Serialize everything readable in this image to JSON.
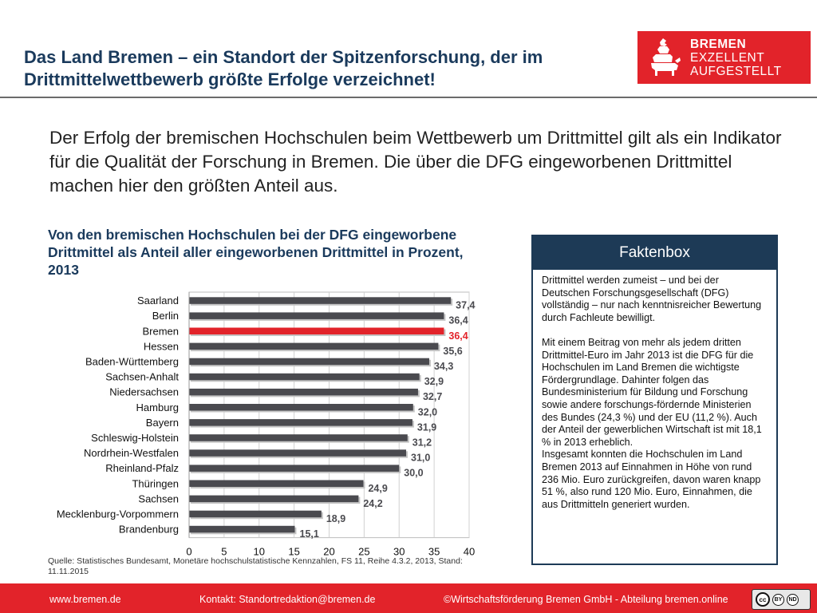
{
  "header": {
    "title": "Das Land Bremen – ein Standort der Spitzenforschung, der im Drittmittelwettbewerb größte Erfolge verzeichnet!"
  },
  "logo": {
    "line1": "BREMEN",
    "line2": "EXZELLENT",
    "line3": "AUFGESTELLT",
    "color": "#e2232a"
  },
  "intro": {
    "text": "Der Erfolg der bremischen Hochschulen beim Wettbewerb um Drittmittel gilt als ein Indikator für die Qualität der Forschung in Bremen. Die über die DFG eingeworbenen Drittmittel machen hier den größten Anteil aus."
  },
  "chart_data": {
    "type": "bar",
    "orientation": "horizontal",
    "title": "Von den bremischen Hochschulen bei der DFG eingeworbene Drittmittel als Anteil aller eingeworbenen Drittmittel in Prozent, 2013",
    "categories": [
      "Saarland",
      "Berlin",
      "Bremen",
      "Hessen",
      "Baden-Württemberg",
      "Sachsen-Anhalt",
      "Niedersachsen",
      "Hamburg",
      "Bayern",
      "Schleswig-Holstein",
      "Nordrhein-Westfalen",
      "Rheinland-Pfalz",
      "Thüringen",
      "Sachsen",
      "Mecklenburg-Vorpommern",
      "Brandenburg"
    ],
    "values": [
      37.4,
      36.4,
      36.4,
      35.6,
      34.3,
      32.9,
      32.7,
      32.0,
      31.9,
      31.2,
      31.0,
      30.0,
      24.9,
      24.2,
      18.9,
      15.1
    ],
    "value_labels": [
      "37,4",
      "36,4",
      "36,4",
      "35,6",
      "34,3",
      "32,9",
      "32,7",
      "32,0",
      "31,9",
      "31,2",
      "31,0",
      "30,0",
      "24,9",
      "24,2",
      "18,9",
      "15,1"
    ],
    "highlight": "Bremen",
    "xlim": [
      0,
      40
    ],
    "xticks": [
      0,
      5,
      10,
      15,
      20,
      25,
      30,
      35,
      40
    ],
    "xlabel": "",
    "ylabel": "",
    "grid": true,
    "bar_color": "#4a4a4f",
    "highlight_color": "#e2232a"
  },
  "source": {
    "text": "Quelle: Statistisches Bundesamt, Monetäre hochschulstatistische Kennzahlen, FS 11, Reihe 4.3.2, 2013, Stand: 11.11.2015"
  },
  "faktenbox": {
    "title": "Faktenbox",
    "p1": "Drittmittel werden zumeist – und bei der Deutschen Forschungsgesellschaft (DFG) vollständig – nur nach kenntnisreicher Bewertung durch Fachleute bewilligt.",
    "p2": "Mit einem Beitrag von mehr als jedem dritten Drittmittel-Euro im Jahr 2013 ist die DFG für die Hochschulen im Land Bremen die wichtigste Fördergrundlage. Dahinter folgen das Bundesministerium für Bildung und Forschung sowie andere forschungs-fördernde Ministerien des Bundes (24,3 %) und der EU (11,2 %). Auch der Anteil der gewerblichen Wirtschaft ist mit 18,1 % in 2013 erheblich.",
    "p3": "Insgesamt konnten die Hochschulen im Land Bremen 2013 auf Einnahmen in Höhe von rund 236 Mio. Euro zurückgreifen, davon waren knapp 51 %, also rund 120 Mio. Euro, Einnahmen, die aus Drittmitteln generiert wurden."
  },
  "footer": {
    "website": "www.bremen.de",
    "contact": "Kontakt: Standortredaktion@bremen.de",
    "copyright": "©Wirtschaftsförderung Bremen GmbH - Abteilung bremen.online",
    "license_cc": "cc",
    "license_by": "BY",
    "license_nd": "ND"
  }
}
